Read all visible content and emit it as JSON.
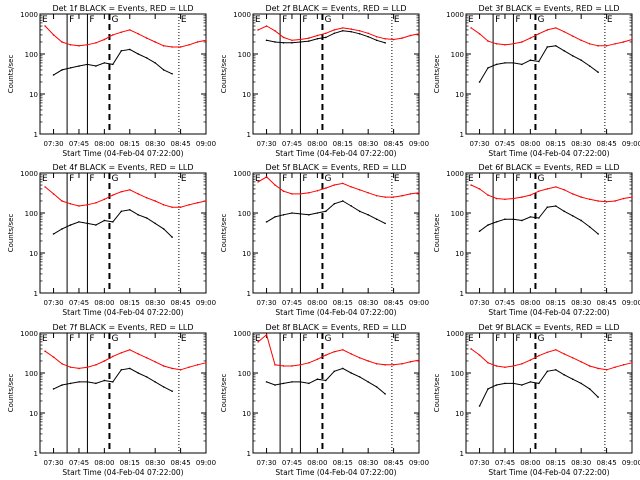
{
  "figure": {
    "colors": {
      "events": "#000000",
      "lld": "#ff0000",
      "axes": "#000000",
      "background": "#ffffff"
    },
    "ylabel": "Counts/sec",
    "xlabel": "Start Time (04-Feb-04 07:22:00)",
    "yticks": [
      "1",
      "10",
      "100",
      "1000"
    ],
    "xticks": [
      "07:30",
      "07:45",
      "08:00",
      "08:15",
      "08:30",
      "08:45",
      "09:00"
    ],
    "markers": [
      {
        "label": "E",
        "time": "07:22",
        "style": "dotted"
      },
      {
        "label": "F",
        "time": "07:38",
        "style": "solid"
      },
      {
        "label": "F",
        "time": "07:50",
        "style": "solid"
      },
      {
        "label": "G",
        "time": "08:03",
        "style": "dashed"
      },
      {
        "label": "E",
        "time": "08:44",
        "style": "dotted"
      }
    ]
  },
  "chart_data": [
    {
      "type": "line",
      "title": "Det 1f BLACK = Events, RED = LLD",
      "yscale": "log",
      "ylim": [
        1,
        1000
      ],
      "xlim": [
        "07:22",
        "09:00"
      ],
      "x": [
        "07:25",
        "07:30",
        "07:35",
        "07:40",
        "07:45",
        "07:50",
        "07:55",
        "08:00",
        "08:05",
        "08:10",
        "08:15",
        "08:20",
        "08:25",
        "08:30",
        "08:35",
        "08:40",
        "08:45",
        "08:50",
        "08:55",
        "09:00"
      ],
      "series": [
        {
          "name": "RED = LLD",
          "values": [
            500,
            300,
            200,
            170,
            160,
            170,
            190,
            230,
            300,
            350,
            400,
            320,
            250,
            200,
            160,
            150,
            150,
            170,
            200,
            220
          ]
        },
        {
          "name": "BLACK = Events",
          "values": [
            null,
            30,
            40,
            45,
            50,
            55,
            50,
            60,
            55,
            120,
            130,
            100,
            80,
            60,
            40,
            32,
            null,
            null,
            null,
            null
          ]
        }
      ]
    },
    {
      "type": "line",
      "title": "Det 2f BLACK = Events, RED = LLD",
      "yscale": "log",
      "ylim": [
        1,
        1000
      ],
      "xlim": [
        "07:22",
        "09:00"
      ],
      "x": [
        "07:25",
        "07:30",
        "07:35",
        "07:40",
        "07:45",
        "07:50",
        "07:55",
        "08:00",
        "08:05",
        "08:10",
        "08:15",
        "08:20",
        "08:25",
        "08:30",
        "08:35",
        "08:40",
        "08:45",
        "08:50",
        "08:55",
        "09:00"
      ],
      "series": [
        {
          "name": "RED = LLD",
          "values": [
            400,
            500,
            380,
            260,
            220,
            230,
            250,
            290,
            330,
            400,
            450,
            420,
            380,
            330,
            270,
            240,
            230,
            250,
            290,
            320
          ]
        },
        {
          "name": "BLACK = Events",
          "values": [
            null,
            220,
            200,
            190,
            190,
            200,
            210,
            240,
            260,
            330,
            380,
            360,
            320,
            270,
            220,
            190,
            null,
            null,
            null,
            null
          ]
        }
      ]
    },
    {
      "type": "line",
      "title": "Det 3f BLACK = Events, RED = LLD",
      "yscale": "log",
      "ylim": [
        1,
        1000
      ],
      "xlim": [
        "07:22",
        "09:00"
      ],
      "x": [
        "07:25",
        "07:30",
        "07:35",
        "07:40",
        "07:45",
        "07:50",
        "07:55",
        "08:00",
        "08:05",
        "08:10",
        "08:15",
        "08:20",
        "08:25",
        "08:30",
        "08:35",
        "08:40",
        "08:45",
        "08:50",
        "08:55",
        "09:00"
      ],
      "series": [
        {
          "name": "RED = LLD",
          "values": [
            450,
            320,
            210,
            180,
            170,
            180,
            200,
            250,
            320,
            400,
            450,
            360,
            280,
            220,
            180,
            160,
            160,
            180,
            200,
            230
          ]
        },
        {
          "name": "BLACK = Events",
          "values": [
            null,
            20,
            45,
            55,
            60,
            60,
            55,
            70,
            65,
            150,
            160,
            120,
            90,
            70,
            50,
            35,
            null,
            null,
            null,
            null
          ]
        }
      ]
    },
    {
      "type": "line",
      "title": "Det 4f BLACK = Events, RED = LLD",
      "yscale": "log",
      "ylim": [
        1,
        1000
      ],
      "xlim": [
        "07:22",
        "09:00"
      ],
      "x": [
        "07:25",
        "07:30",
        "07:35",
        "07:40",
        "07:45",
        "07:50",
        "07:55",
        "08:00",
        "08:05",
        "08:10",
        "08:15",
        "08:20",
        "08:25",
        "08:30",
        "08:35",
        "08:40",
        "08:45",
        "08:50",
        "08:55",
        "09:00"
      ],
      "series": [
        {
          "name": "RED = LLD",
          "values": [
            450,
            300,
            200,
            170,
            150,
            160,
            180,
            220,
            280,
            340,
            380,
            300,
            240,
            200,
            160,
            140,
            140,
            160,
            180,
            200
          ]
        },
        {
          "name": "BLACK = Events",
          "values": [
            null,
            30,
            40,
            50,
            60,
            55,
            50,
            65,
            60,
            110,
            120,
            90,
            75,
            55,
            40,
            25,
            null,
            null,
            null,
            null
          ]
        }
      ]
    },
    {
      "type": "line",
      "title": "Det 5f BLACK = Events, RED = LLD",
      "yscale": "log",
      "ylim": [
        1,
        1000
      ],
      "xlim": [
        "07:22",
        "09:00"
      ],
      "x": [
        "07:25",
        "07:30",
        "07:35",
        "07:40",
        "07:45",
        "07:50",
        "07:55",
        "08:00",
        "08:05",
        "08:10",
        "08:15",
        "08:20",
        "08:25",
        "08:30",
        "08:35",
        "08:40",
        "08:45",
        "08:50",
        "08:55",
        "09:00"
      ],
      "series": [
        {
          "name": "RED = LLD",
          "values": [
            600,
            800,
            500,
            350,
            300,
            300,
            320,
            360,
            420,
            500,
            550,
            450,
            380,
            320,
            270,
            250,
            250,
            270,
            300,
            320
          ]
        },
        {
          "name": "BLACK = Events",
          "values": [
            null,
            60,
            80,
            90,
            100,
            95,
            90,
            100,
            110,
            170,
            200,
            150,
            110,
            90,
            70,
            55,
            null,
            null,
            null,
            null
          ]
        }
      ]
    },
    {
      "type": "line",
      "title": "Det 6f BLACK = Events, RED = LLD",
      "yscale": "log",
      "ylim": [
        1,
        1000
      ],
      "xlim": [
        "07:22",
        "09:00"
      ],
      "x": [
        "07:25",
        "07:30",
        "07:35",
        "07:40",
        "07:45",
        "07:50",
        "07:55",
        "08:00",
        "08:05",
        "08:10",
        "08:15",
        "08:20",
        "08:25",
        "08:30",
        "08:35",
        "08:40",
        "08:45",
        "08:50",
        "08:55",
        "09:00"
      ],
      "series": [
        {
          "name": "RED = LLD",
          "values": [
            500,
            400,
            280,
            230,
            220,
            230,
            250,
            280,
            350,
            400,
            450,
            380,
            300,
            250,
            220,
            200,
            190,
            200,
            230,
            250
          ]
        },
        {
          "name": "BLACK = Events",
          "values": [
            null,
            35,
            50,
            60,
            70,
            70,
            65,
            80,
            75,
            140,
            150,
            110,
            85,
            65,
            45,
            30,
            null,
            null,
            null,
            null
          ]
        }
      ]
    },
    {
      "type": "line",
      "title": "Det 7f BLACK = Events, RED = LLD",
      "yscale": "log",
      "ylim": [
        1,
        1000
      ],
      "xlim": [
        "07:22",
        "09:00"
      ],
      "x": [
        "07:25",
        "07:30",
        "07:35",
        "07:40",
        "07:45",
        "07:50",
        "07:55",
        "08:00",
        "08:05",
        "08:10",
        "08:15",
        "08:20",
        "08:25",
        "08:30",
        "08:35",
        "08:40",
        "08:45",
        "08:50",
        "08:55",
        "09:00"
      ],
      "series": [
        {
          "name": "RED = LLD",
          "values": [
            350,
            250,
            170,
            140,
            130,
            140,
            160,
            200,
            260,
            320,
            380,
            300,
            240,
            190,
            150,
            130,
            120,
            140,
            160,
            180
          ]
        },
        {
          "name": "BLACK = Events",
          "values": [
            null,
            40,
            50,
            55,
            60,
            60,
            55,
            65,
            60,
            120,
            130,
            100,
            80,
            60,
            45,
            35,
            null,
            null,
            null,
            null
          ]
        }
      ]
    },
    {
      "type": "line",
      "title": "Det 8f BLACK = Events, RED = LLD",
      "yscale": "log",
      "ylim": [
        1,
        1000
      ],
      "xlim": [
        "07:22",
        "09:00"
      ],
      "x": [
        "07:25",
        "07:30",
        "07:35",
        "07:40",
        "07:45",
        "07:50",
        "07:55",
        "08:00",
        "08:05",
        "08:10",
        "08:15",
        "08:20",
        "08:25",
        "08:30",
        "08:35",
        "08:40",
        "08:45",
        "08:50",
        "08:55",
        "09:00"
      ],
      "series": [
        {
          "name": "RED = LLD",
          "values": [
            600,
            900,
            160,
            150,
            150,
            160,
            180,
            220,
            280,
            340,
            380,
            300,
            240,
            200,
            170,
            160,
            160,
            170,
            190,
            210
          ]
        },
        {
          "name": "BLACK = Events",
          "values": [
            null,
            60,
            50,
            55,
            60,
            60,
            55,
            70,
            65,
            110,
            130,
            100,
            80,
            60,
            45,
            30,
            null,
            null,
            null,
            null
          ]
        }
      ]
    },
    {
      "type": "line",
      "title": "Det 9f BLACK = Events, RED = LLD",
      "yscale": "log",
      "ylim": [
        1,
        1000
      ],
      "xlim": [
        "07:22",
        "09:00"
      ],
      "x": [
        "07:25",
        "07:30",
        "07:35",
        "07:40",
        "07:45",
        "07:50",
        "07:55",
        "08:00",
        "08:05",
        "08:10",
        "08:15",
        "08:20",
        "08:25",
        "08:30",
        "08:35",
        "08:40",
        "08:45",
        "08:50",
        "08:55",
        "09:00"
      ],
      "series": [
        {
          "name": "RED = LLD",
          "values": [
            400,
            280,
            180,
            150,
            140,
            150,
            170,
            210,
            270,
            330,
            380,
            300,
            240,
            190,
            150,
            130,
            120,
            140,
            160,
            180
          ]
        },
        {
          "name": "BLACK = Events",
          "values": [
            null,
            15,
            40,
            50,
            55,
            55,
            50,
            60,
            55,
            110,
            120,
            90,
            70,
            55,
            40,
            25,
            null,
            null,
            null,
            null
          ]
        }
      ]
    }
  ]
}
